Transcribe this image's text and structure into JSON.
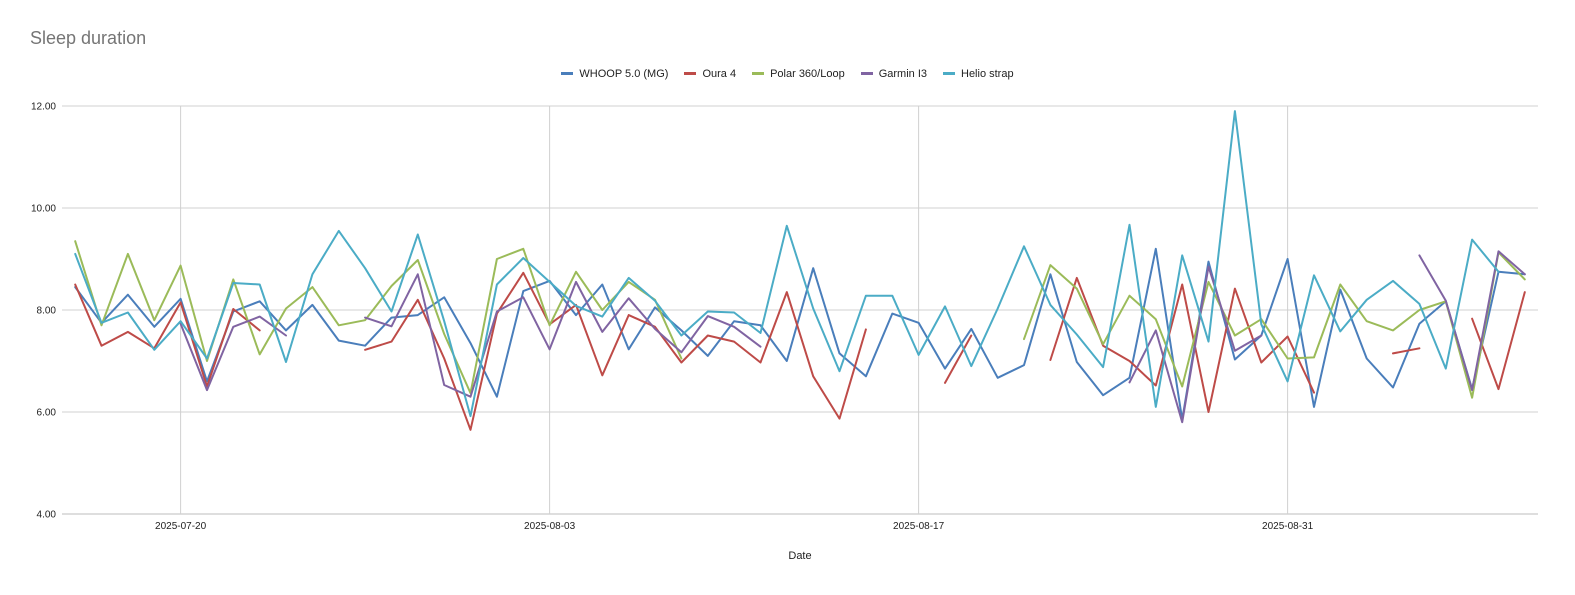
{
  "chart_data": {
    "type": "line",
    "title": "Sleep duration",
    "xlabel": "Date",
    "ylabel": "",
    "ylim": [
      4,
      12
    ],
    "yticks": [
      "4.00",
      "6.00",
      "8.00",
      "10.00",
      "12.00"
    ],
    "xtick_labels": [
      "2025-07-20",
      "2025-08-03",
      "2025-08-17",
      "2025-08-31"
    ],
    "xtick_positions": [
      4,
      18,
      32,
      46
    ],
    "grid": true,
    "legend_position": "top",
    "x": [
      "2025-07-16",
      "2025-07-17",
      "2025-07-18",
      "2025-07-19",
      "2025-07-20",
      "2025-07-21",
      "2025-07-22",
      "2025-07-23",
      "2025-07-24",
      "2025-07-25",
      "2025-07-26",
      "2025-07-27",
      "2025-07-28",
      "2025-07-29",
      "2025-07-30",
      "2025-07-31",
      "2025-08-01",
      "2025-08-02",
      "2025-08-03",
      "2025-08-04",
      "2025-08-05",
      "2025-08-06",
      "2025-08-07",
      "2025-08-08",
      "2025-08-09",
      "2025-08-10",
      "2025-08-11",
      "2025-08-12",
      "2025-08-13",
      "2025-08-14",
      "2025-08-15",
      "2025-08-16",
      "2025-08-17",
      "2025-08-18",
      "2025-08-19",
      "2025-08-20",
      "2025-08-21",
      "2025-08-22",
      "2025-08-23",
      "2025-08-24",
      "2025-08-25",
      "2025-08-26",
      "2025-08-27",
      "2025-08-28",
      "2025-08-29",
      "2025-08-30",
      "2025-08-31",
      "2025-09-01",
      "2025-09-02",
      "2025-09-03",
      "2025-09-04",
      "2025-09-05",
      "2025-09-06",
      "2025-09-07",
      "2025-09-08",
      "2025-09-09"
    ],
    "series": [
      {
        "name": "WHOOP 5.0 (MG)",
        "color": "#4a7ebb",
        "values": [
          8.45,
          7.75,
          8.3,
          7.67,
          8.22,
          6.6,
          7.97,
          8.17,
          7.6,
          8.1,
          7.4,
          7.3,
          7.85,
          7.9,
          8.25,
          7.35,
          6.3,
          8.37,
          8.57,
          7.9,
          8.5,
          7.23,
          8.05,
          7.6,
          7.1,
          7.78,
          7.7,
          7.0,
          8.82,
          7.15,
          6.7,
          7.93,
          7.75,
          6.85,
          7.63,
          6.67,
          6.92,
          8.7,
          6.98,
          6.33,
          6.67,
          9.2,
          5.85,
          8.95,
          7.03,
          7.5,
          9.0,
          6.1,
          8.4,
          7.05,
          6.48,
          7.73,
          8.17,
          6.45,
          8.75,
          8.7
        ]
      },
      {
        "name": "Oura 4",
        "color": "#be4b48",
        "values": [
          8.5,
          7.3,
          7.57,
          7.25,
          8.15,
          6.5,
          8.02,
          7.6,
          null,
          null,
          null,
          7.22,
          7.38,
          8.2,
          7.05,
          5.65,
          7.93,
          8.73,
          7.72,
          8.1,
          6.72,
          7.9,
          7.67,
          6.97,
          7.5,
          7.38,
          6.97,
          8.35,
          6.7,
          5.87,
          7.62,
          null,
          null,
          6.57,
          7.5,
          null,
          null,
          7.02,
          8.63,
          7.3,
          7.0,
          6.52,
          8.5,
          6.0,
          8.42,
          6.97,
          7.48,
          6.38,
          null,
          null,
          7.15,
          7.25,
          null,
          7.83,
          6.45,
          8.35
        ]
      },
      {
        "name": "Polar 360/Loop",
        "color": "#9bbb59",
        "values": [
          9.35,
          7.7,
          9.1,
          7.8,
          8.87,
          7.0,
          8.6,
          7.13,
          8.03,
          8.45,
          7.7,
          7.8,
          8.47,
          8.98,
          7.53,
          6.37,
          9.0,
          9.2,
          7.7,
          8.75,
          8.0,
          8.55,
          8.2,
          7.05,
          null,
          null,
          null,
          null,
          null,
          null,
          null,
          null,
          null,
          null,
          null,
          null,
          7.43,
          8.88,
          8.42,
          7.33,
          8.28,
          7.82,
          6.5,
          8.55,
          7.5,
          7.82,
          7.05,
          7.07,
          8.5,
          7.78,
          7.6,
          8.0,
          8.17,
          6.28,
          9.13,
          8.6
        ]
      },
      {
        "name": "Garmin I3",
        "color": "#8064a2",
        "values": [
          8.38,
          null,
          null,
          null,
          7.73,
          6.43,
          7.67,
          7.87,
          7.5,
          null,
          null,
          7.85,
          7.68,
          8.7,
          6.53,
          6.3,
          7.97,
          8.25,
          7.23,
          8.55,
          7.57,
          8.23,
          7.63,
          7.17,
          7.88,
          7.67,
          7.28,
          null,
          null,
          null,
          null,
          null,
          null,
          null,
          null,
          null,
          null,
          8.63,
          null,
          null,
          6.58,
          7.6,
          5.8,
          8.85,
          7.2,
          7.5,
          null,
          null,
          null,
          null,
          null,
          9.07,
          8.18,
          6.43,
          9.15,
          8.7
        ]
      },
      {
        "name": "Helio strap",
        "color": "#4bacc6",
        "values": [
          9.1,
          7.75,
          7.95,
          7.22,
          7.78,
          7.05,
          8.53,
          8.5,
          6.98,
          8.7,
          9.55,
          8.82,
          7.97,
          9.48,
          7.78,
          5.92,
          8.5,
          9.02,
          8.55,
          8.08,
          7.87,
          8.63,
          8.18,
          7.5,
          7.97,
          7.95,
          7.55,
          9.65,
          8.03,
          6.8,
          8.28,
          8.28,
          7.12,
          8.07,
          6.9,
          8.03,
          9.25,
          8.1,
          7.52,
          6.88,
          9.67,
          6.1,
          9.07,
          7.38,
          11.9,
          7.72,
          6.6,
          8.68,
          7.58,
          8.2,
          8.57,
          8.12,
          6.85,
          9.38,
          8.75,
          null
        ]
      }
    ]
  }
}
